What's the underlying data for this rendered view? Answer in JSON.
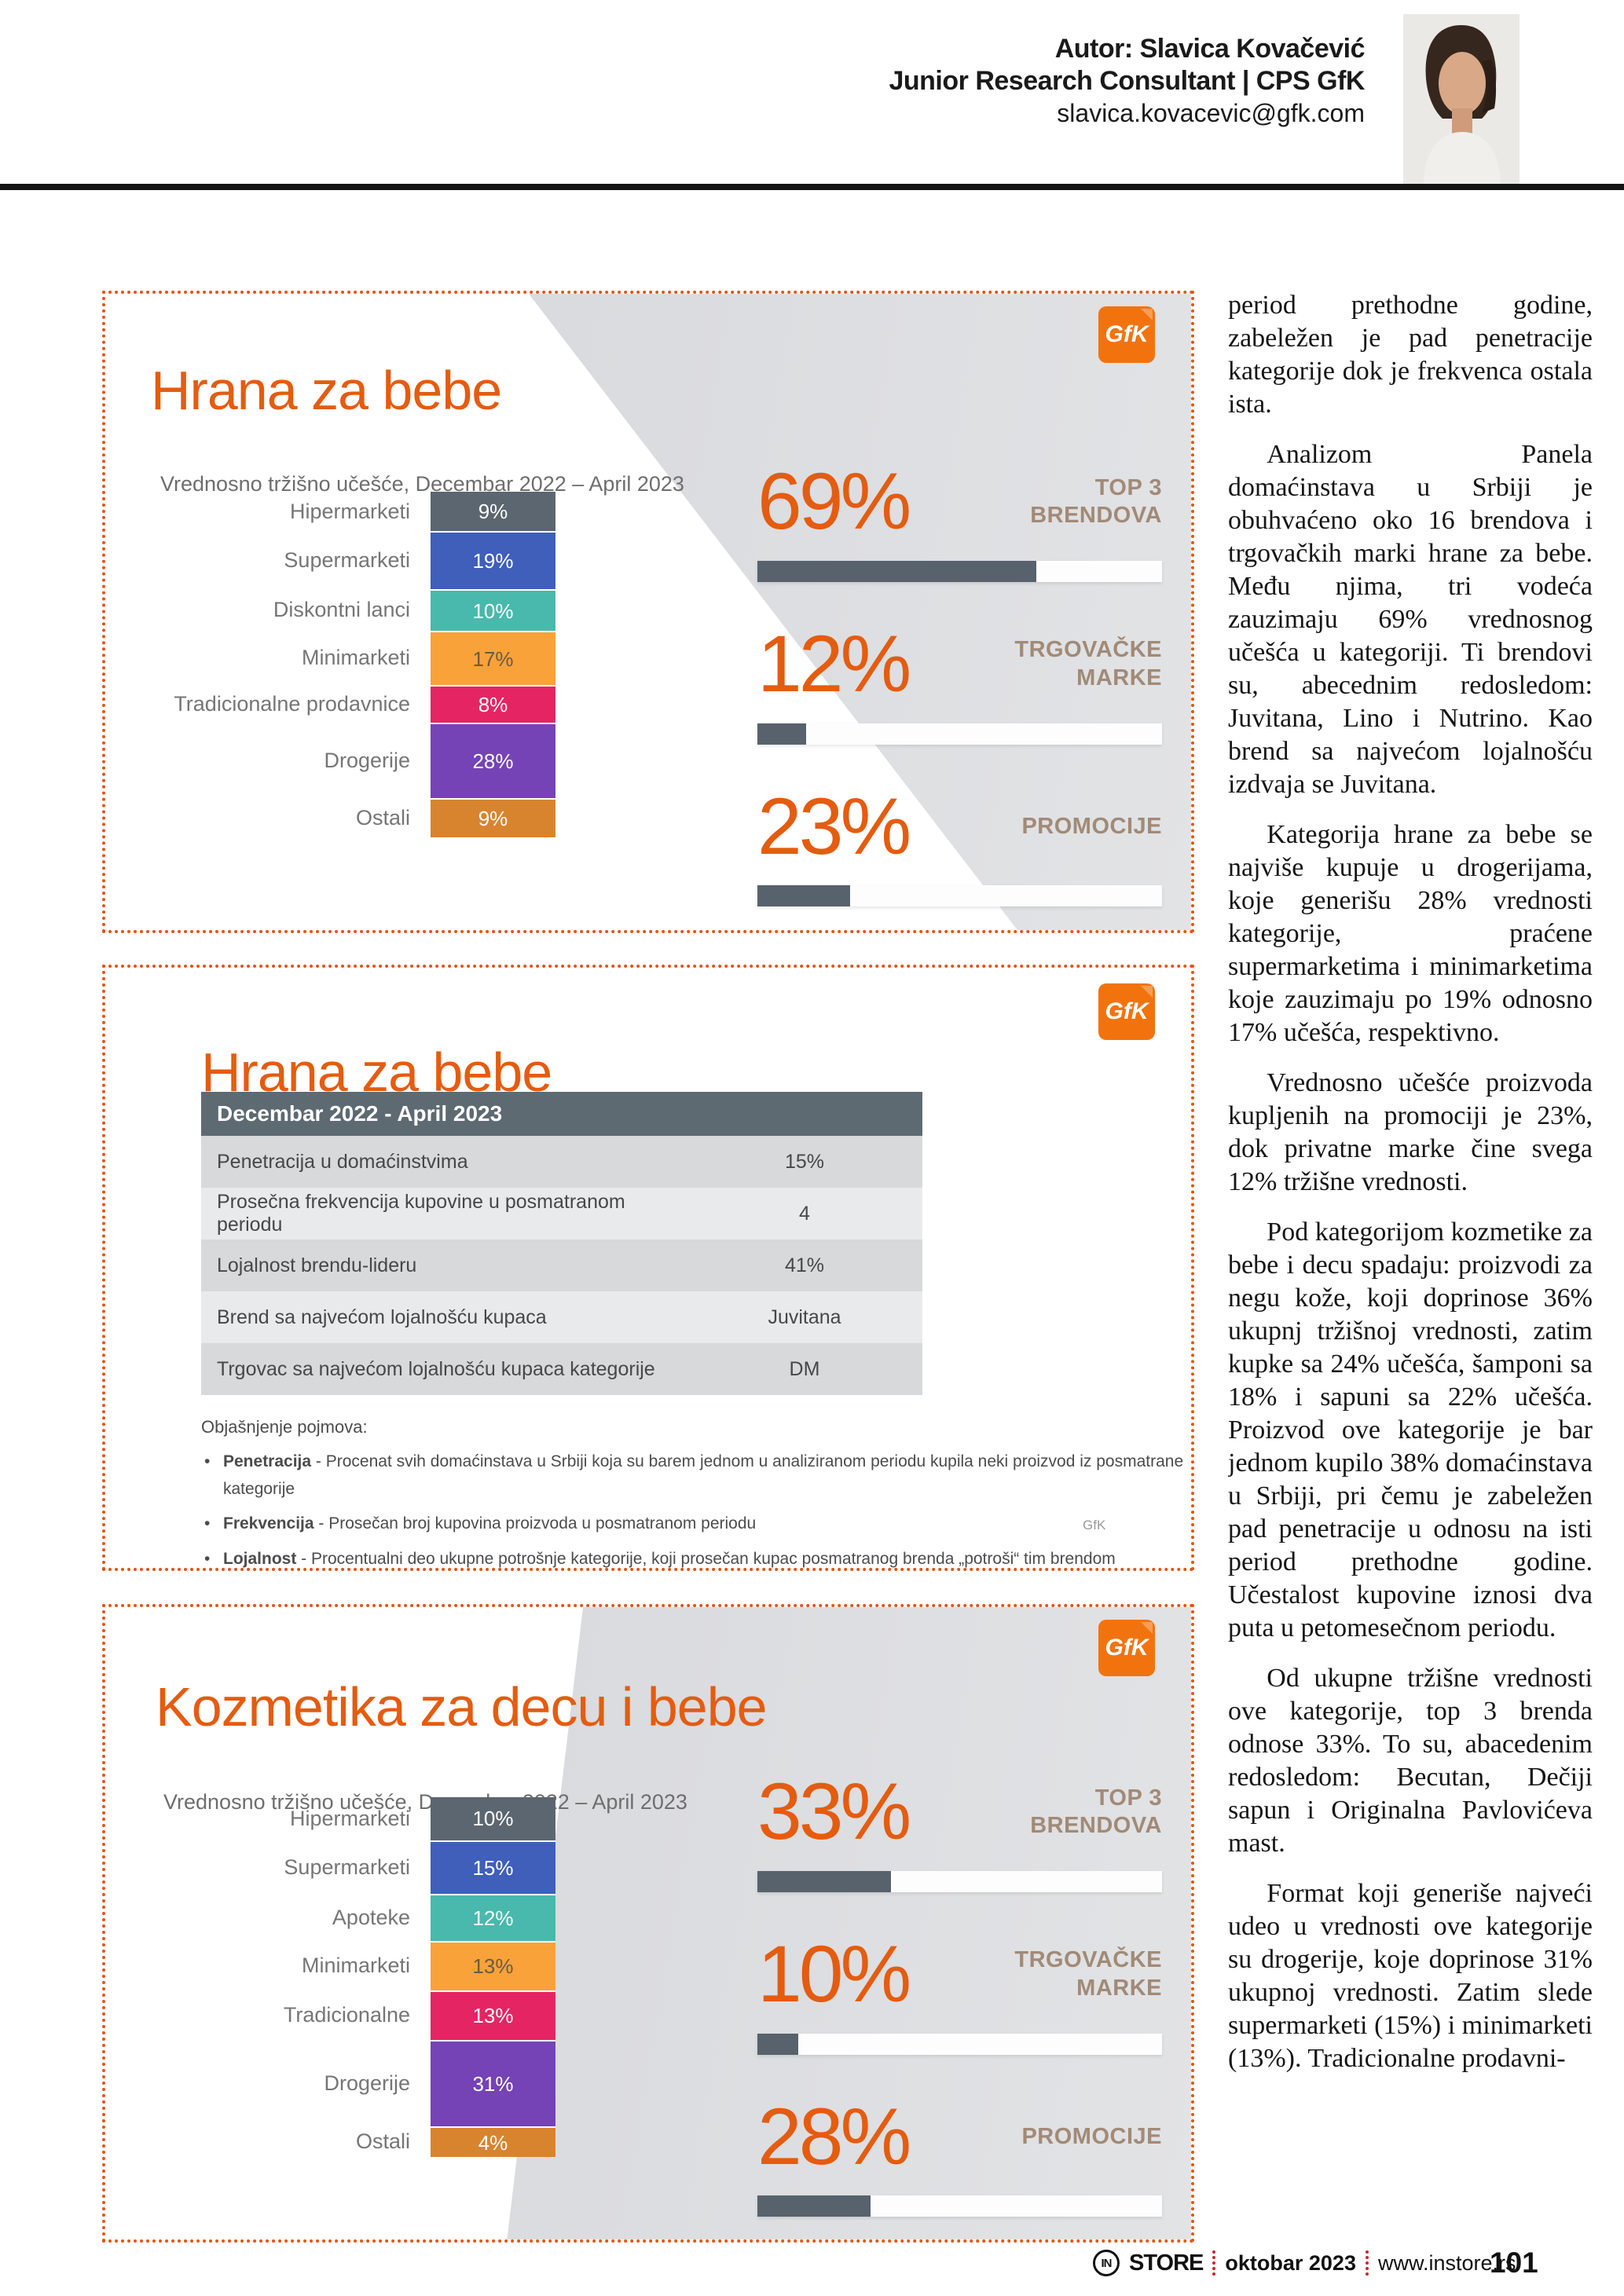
{
  "brand": {
    "gfk_logo_text": "GfK",
    "orange": "#e8510f",
    "kpi_fill_gray": "#57626c",
    "footer_red": "#d12229"
  },
  "header": {
    "author": "Autor: Slavica Kovačević",
    "role": "Junior Research Consultant | CPS GfK",
    "email": "slavica.kovacevic@gfk.com"
  },
  "box1": {
    "title": "Hrana za bebe",
    "subtitle": "Vrednosno tržišno učešće, Decembar 2022 – April 2023",
    "bar": {
      "segments": [
        {
          "label": "Hipermarketi",
          "value": 9,
          "display": "9%",
          "color": "#5b6670",
          "text_color": "#ffffff"
        },
        {
          "label": "Supermarketi",
          "value": 19,
          "display": "19%",
          "color": "#3f5fba",
          "text_color": "#ffffff"
        },
        {
          "label": "Diskontni lanci",
          "value": 10,
          "display": "10%",
          "color": "#48b9ac",
          "text_color": "#ffffff"
        },
        {
          "label": "Minimarketi",
          "value": 17,
          "display": "17%",
          "color": "#f9a23a",
          "text_color": "#6b5a40"
        },
        {
          "label": "Tradicionalne prodavnice",
          "value": 8,
          "display": "8%",
          "color": "#e52563",
          "text_color": "#ffffff"
        },
        {
          "label": "Drogerije",
          "value": 28,
          "display": "28%",
          "color": "#7543b5",
          "text_color": "#ffffff"
        },
        {
          "label": "Ostali",
          "value": 9,
          "display": "9%",
          "color": "#d8842f",
          "text_color": "#ffffff"
        }
      ]
    },
    "kpis": [
      {
        "value_text": "69%",
        "pct": 69,
        "label": "TOP 3 BRENDOVA"
      },
      {
        "value_text": "12%",
        "pct": 12,
        "label": "TRGOVAČKE MARKE"
      },
      {
        "value_text": "23%",
        "pct": 23,
        "label": "PROMOCIJE"
      }
    ]
  },
  "box2": {
    "title": "Hrana za bebe",
    "table": {
      "header": "Decembar 2022 - April 2023",
      "rows": [
        {
          "label": "Penetracija u domaćinstvima",
          "value": "15%"
        },
        {
          "label": "Prosečna frekvencija kupovine u posmatranom periodu",
          "value": "4"
        },
        {
          "label": "Lojalnost brendu-lideru",
          "value": "41%"
        },
        {
          "label": "Brend sa najvećom lojalnošću kupaca",
          "value": "Juvitana"
        },
        {
          "label": "Trgovac sa najvećom lojalnošću kupaca kategorije",
          "value": "DM"
        }
      ]
    },
    "legend_title": "Objašnjenje pojmova:",
    "legend": [
      {
        "term": "Penetracija",
        "text": " - Procenat svih domaćinstava u Srbiji koja su barem jednom u analiziranom periodu kupila neki proizvod iz posmatrane kategorije"
      },
      {
        "term": "Frekvencija",
        "text": " - Prosečan broj kupovina proizvoda u posmatranom periodu"
      },
      {
        "term": "Lojalnost",
        "text": " - Procentualni deo ukupne potrošnje kategorije, koji prosečan kupac posmatranog brenda „potroši“ tim brendom"
      }
    ],
    "watermark": "GfK"
  },
  "box3": {
    "title": "Kozmetika za decu i bebe",
    "subtitle": "Vrednosno tržišno učešće, Decembar 2022 – April 2023",
    "bar": {
      "segments": [
        {
          "label": "Hipermarketi",
          "value": 10,
          "display": "10%",
          "color": "#5b6670",
          "text_color": "#ffffff"
        },
        {
          "label": "Supermarketi",
          "value": 15,
          "display": "15%",
          "color": "#3f5fba",
          "text_color": "#ffffff"
        },
        {
          "label": "Apoteke",
          "value": 12,
          "display": "12%",
          "color": "#48b9ac",
          "text_color": "#ffffff"
        },
        {
          "label": "Minimarketi",
          "value": 13,
          "display": "13%",
          "color": "#f9a23a",
          "text_color": "#6b5a40"
        },
        {
          "label": "Tradicionalne",
          "value": 13,
          "display": "13%",
          "color": "#e52563",
          "text_color": "#ffffff"
        },
        {
          "label": "Drogerije",
          "value": 31,
          "display": "31%",
          "color": "#7543b5",
          "text_color": "#ffffff"
        },
        {
          "label": "Ostali",
          "value": 4,
          "display": "4%",
          "color": "#d8842f",
          "text_color": "#ffffff"
        }
      ]
    },
    "kpis": [
      {
        "value_text": "33%",
        "pct": 33,
        "label": "TOP 3 BRENDOVA"
      },
      {
        "value_text": "10%",
        "pct": 10,
        "label": "TRGOVAČKE MARKE"
      },
      {
        "value_text": "28%",
        "pct": 28,
        "label": "PROMOCIJE"
      }
    ]
  },
  "article": {
    "paragraphs": [
      "period prethodne godine, zabeležen je pad penetracije kategorije dok je frekvenca ostala ista.",
      "Analizom Panela domaćinstava u Srbiji je obuhvaćeno oko 16 brendova i trgovačkih marki hrane za bebe. Među njima, tri vodeća zauzimaju 69% vrednosnog učešća u kategoriji. Ti brendovi su, abecednim redosledom: Juvitana, Lino i Nutrino. Kao brend sa najvećom lojalnošću izdvaja se Juvitana.",
      "Kategorija hrane za bebe se najviše kupuje u drogerijama, koje generišu 28% vrednosti kategorije, praćene supermarketima i minimarketima koje zauzimaju po 19% odnosno 17% učešća, respektivno.",
      "Vrednosno učešće proizvoda kupljenih na promociji je 23%, dok privatne marke čine svega 12% tržišne vrednosti.",
      "Pod kategorijom kozmetike za bebe i decu spadaju: proizvodi za negu kože, koji doprinose 36% ukupnj tržišnoj vrednosti, zatim kupke sa 24% učešća, šamponi sa 18% i sapuni sa 22% učešća. Proizvod ove kategorije je bar jednom kupilo 38% domaćinstava u Srbiji, pri čemu je zabeležen pad penetracije u odnosu na isti period prethodne godine. Učestalost kupovine iznosi dva puta u petomesečnom periodu.",
      "Od ukupne tržišne vrednosti ove kategorije, top 3 brenda odnose 33%. To su, abacedenim redosledom: Becutan, Dečiji sapun i Originalna Pavlovićeva mast.",
      "Format koji generiše najveći udeo u vrednosti ove kategorije su drogerije, koje doprinose 31% ukupnoj vrednosti. Zatim slede supermarketi (15%) i minimarketi (13%). Tradicionalne prodavni-"
    ]
  },
  "footer": {
    "brand_in": "IN",
    "brand_store": "STORE",
    "issue": "oktobar 2023",
    "site": "www.instore.rs",
    "page_number": "101"
  },
  "chart_data": [
    {
      "type": "bar",
      "title": "Hrana za bebe",
      "subtitle": "Vrednosno tržišno učešće, Decembar 2022 – April 2023",
      "orientation": "vertical-stacked",
      "categories": [
        "Hipermarketi",
        "Supermarketi",
        "Diskontni lanci",
        "Minimarketi",
        "Tradicionalne prodavnice",
        "Drogerije",
        "Ostali"
      ],
      "values": [
        9,
        19,
        10,
        17,
        8,
        28,
        9
      ],
      "unit": "%",
      "kpis": [
        {
          "label": "TOP 3 BRENDOVA",
          "value": 69
        },
        {
          "label": "TRGOVAČKE MARKE",
          "value": 12
        },
        {
          "label": "PROMOCIJE",
          "value": 23
        }
      ]
    },
    {
      "type": "table",
      "title": "Hrana za bebe",
      "header": "Decembar 2022 - April 2023",
      "rows": [
        [
          "Penetracija u domaćinstvima",
          "15%"
        ],
        [
          "Prosečna frekvencija kupovine u posmatranom periodu",
          "4"
        ],
        [
          "Lojalnost brendu-lideru",
          "41%"
        ],
        [
          "Brend sa najvećom lojalnošću kupaca",
          "Juvitana"
        ],
        [
          "Trgovac sa najvećom lojalnošću kupaca kategorije",
          "DM"
        ]
      ]
    },
    {
      "type": "bar",
      "title": "Kozmetika za decu i bebe",
      "subtitle": "Vrednosno tržišno učešće, Decembar 2022 – April 2023",
      "orientation": "vertical-stacked",
      "categories": [
        "Hipermarketi",
        "Supermarketi",
        "Apoteke",
        "Minimarketi",
        "Tradicionalne",
        "Drogerije",
        "Ostali"
      ],
      "values": [
        10,
        15,
        12,
        13,
        13,
        31,
        4
      ],
      "unit": "%",
      "kpis": [
        {
          "label": "TOP 3 BRENDOVA",
          "value": 33
        },
        {
          "label": "TRGOVAČKE MARKE",
          "value": 10
        },
        {
          "label": "PROMOCIJE",
          "value": 28
        }
      ]
    }
  ]
}
